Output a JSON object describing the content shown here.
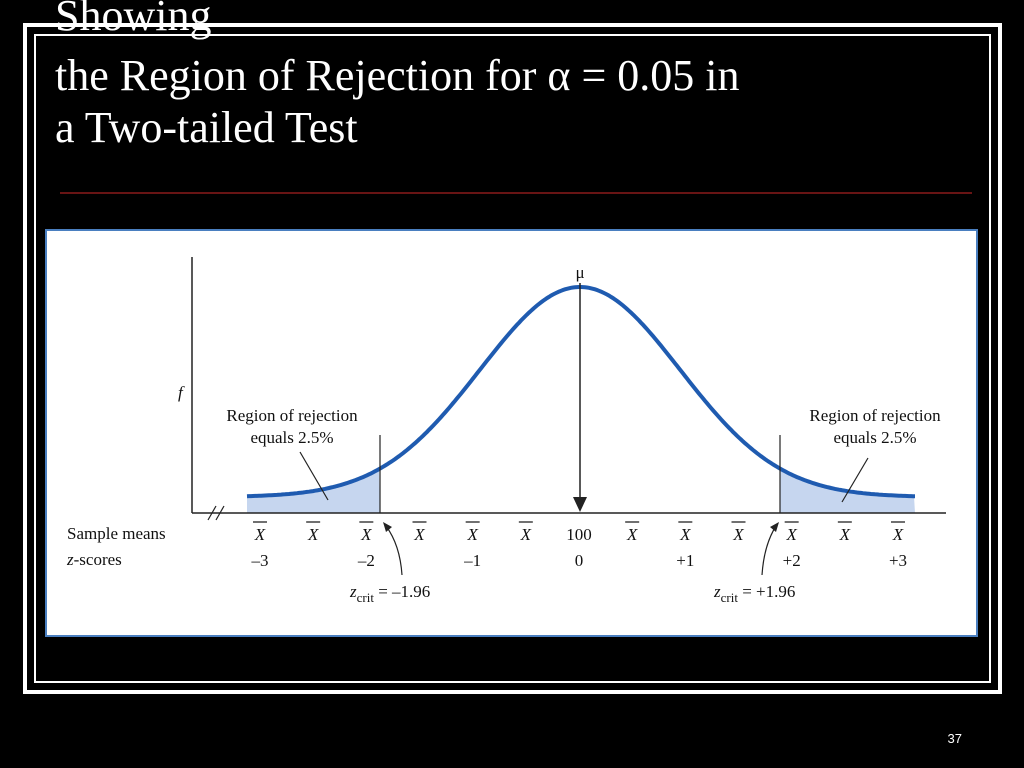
{
  "slide": {
    "title": [
      "Showing",
      "the Region of Rejection for α = 0.05 in",
      "a Two-tailed Test"
    ],
    "page_number": "37"
  },
  "figure": {
    "mean_symbol": "μ",
    "y_label": "f",
    "left_region": [
      "Region of rejection",
      "equals 2.5%"
    ],
    "right_region": [
      "Region of rejection",
      "equals 2.5%"
    ],
    "sample_means_label": "Sample means",
    "z_scores_label": {
      "italic": "z",
      "rest": "-scores"
    },
    "sample_means": [
      "X",
      "X",
      "X",
      "X",
      "X",
      "X",
      "100",
      "X",
      "X",
      "X",
      "X",
      "X",
      "X"
    ],
    "z_scores": [
      "–3",
      null,
      "–2",
      null,
      "–1",
      null,
      "0",
      null,
      "+1",
      null,
      "+2",
      null,
      "+3"
    ],
    "z_crit": [
      {
        "z": "z",
        "sub": "crit",
        "rest": " = –1.96"
      },
      {
        "z": "z",
        "sub": "crit",
        "rest": " = +1.96"
      }
    ]
  }
}
